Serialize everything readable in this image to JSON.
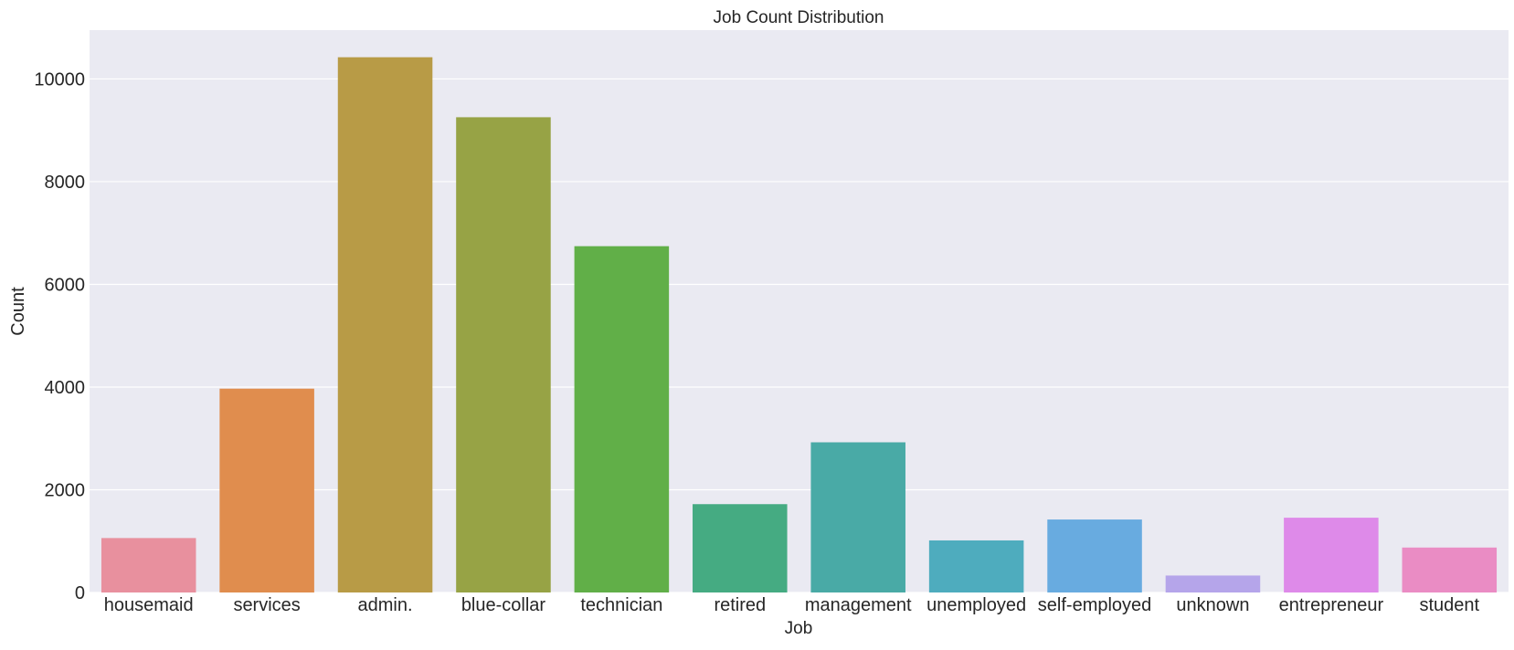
{
  "chart_data": {
    "type": "bar",
    "title": "Job Count Distribution",
    "xlabel": "Job",
    "ylabel": "Count",
    "categories": [
      "housemaid",
      "services",
      "admin.",
      "blue-collar",
      "technician",
      "retired",
      "management",
      "unemployed",
      "self-employed",
      "unknown",
      "entrepreneur",
      "student"
    ],
    "values": [
      1060,
      3969,
      10422,
      9254,
      6743,
      1720,
      2924,
      1014,
      1421,
      330,
      1456,
      875
    ],
    "ylim": [
      0,
      10950
    ],
    "yticks": [
      0,
      2000,
      4000,
      6000,
      8000,
      10000
    ],
    "grid": true,
    "legend": "none",
    "colors": [
      "#e8909e",
      "#e08d4e",
      "#b89b46",
      "#97a345",
      "#61af48",
      "#45ab82",
      "#49aaa6",
      "#4eacbe",
      "#68abe0",
      "#b5a5ea",
      "#de8ae9",
      "#ea8cc4"
    ],
    "background_color": "#eaeaf2",
    "grid_color": "#ffffff"
  }
}
